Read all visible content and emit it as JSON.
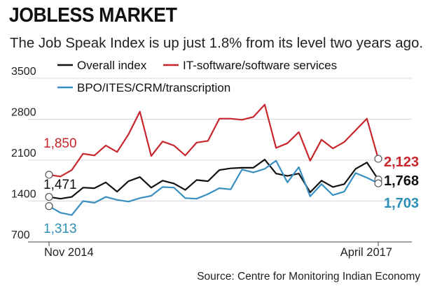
{
  "chart_data": {
    "type": "line",
    "title": "JOBLESS MARKET",
    "subtitle": "The Job Speak Index is up just 1.8% from its level two years ago.",
    "source": "Source: Centre for Monitoring Indian Economy",
    "x_start_label": "Nov 2014",
    "x_end_label": "April 2017",
    "ylim": [
      700,
      3500
    ],
    "yticks": [
      "3500",
      "2800",
      "2100",
      "1400",
      "700"
    ],
    "grid": true,
    "colors": {
      "overall": "#111111",
      "it": "#c8262c",
      "bpo": "#3a8fc1"
    },
    "series": [
      {
        "key": "it",
        "name": "IT-software/software services",
        "color": "#c8262c",
        "start_label": "1,850",
        "end_label": "2,123",
        "values": [
          1850,
          1820,
          1930,
          2210,
          2180,
          2350,
          2240,
          2540,
          2930,
          2170,
          2420,
          2350,
          2180,
          2400,
          2430,
          2810,
          2810,
          2790,
          2840,
          3050,
          2310,
          2390,
          2580,
          2090,
          2450,
          2300,
          2410,
          2610,
          2810,
          2123
        ]
      },
      {
        "key": "overall",
        "name": "Overall index",
        "color": "#111111",
        "start_label": "1,471",
        "end_label": "1,768",
        "values": [
          1471,
          1440,
          1470,
          1630,
          1620,
          1720,
          1560,
          1740,
          1810,
          1630,
          1750,
          1700,
          1590,
          1760,
          1740,
          1930,
          1960,
          1970,
          1970,
          2110,
          1870,
          1830,
          1870,
          1550,
          1750,
          1640,
          1690,
          1950,
          2060,
          1768
        ]
      },
      {
        "key": "bpo",
        "name": "BPO/ITES/CRM/transcription",
        "color": "#3a8fc1",
        "start_label": "1,313",
        "end_label": "1,703",
        "values": [
          1313,
          1200,
          1160,
          1400,
          1370,
          1470,
          1420,
          1390,
          1450,
          1490,
          1640,
          1630,
          1450,
          1440,
          1520,
          1620,
          1600,
          1940,
          1890,
          1950,
          2090,
          1720,
          1980,
          1480,
          1690,
          1500,
          1560,
          1880,
          1800,
          1703
        ]
      }
    ]
  }
}
